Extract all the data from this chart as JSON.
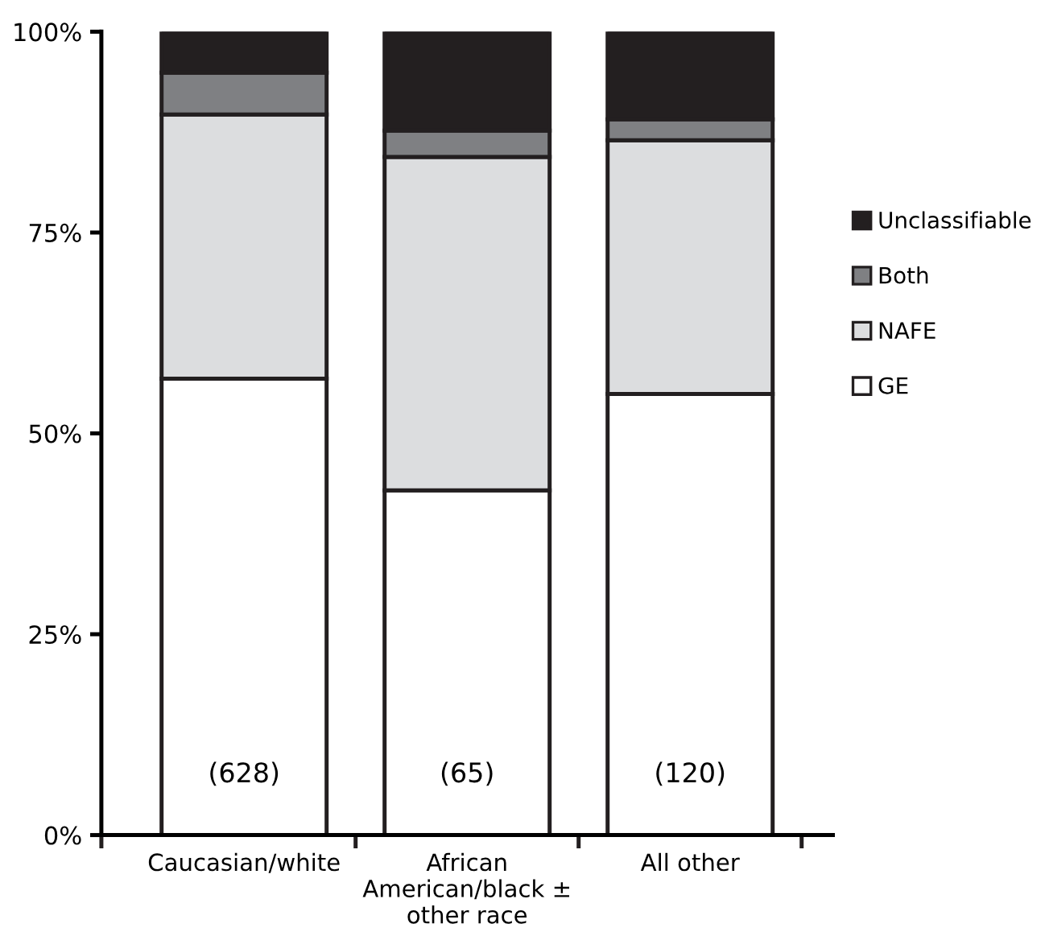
{
  "chart_data": {
    "type": "bar",
    "stacked": true,
    "categories": [
      "Caucasian/white",
      "African\nAmerican/black ±\nother race",
      "All other"
    ],
    "series": [
      {
        "name": "GE",
        "color": "#ffffff",
        "values": [
          56.8,
          42.9,
          54.9
        ]
      },
      {
        "name": "NAFE",
        "color": "#dcdddf",
        "values": [
          32.9,
          41.5,
          31.6
        ]
      },
      {
        "name": "Both",
        "color": "#7f8083",
        "values": [
          5.2,
          3.3,
          2.6
        ]
      },
      {
        "name": "Unclassifiable",
        "color": "#231f20",
        "values": [
          5.1,
          12.3,
          10.9
        ]
      }
    ],
    "ylim": [
      0,
      100
    ],
    "yticks": [
      {
        "value": 0,
        "label": "0%"
      },
      {
        "value": 25,
        "label": "25%"
      },
      {
        "value": 50,
        "label": "50%"
      },
      {
        "value": 75,
        "label": "75%"
      },
      {
        "value": 100,
        "label": "100%"
      }
    ],
    "annotations": [
      "(628)",
      "(65)",
      "(120)"
    ],
    "legend": "right",
    "grid": false
  }
}
